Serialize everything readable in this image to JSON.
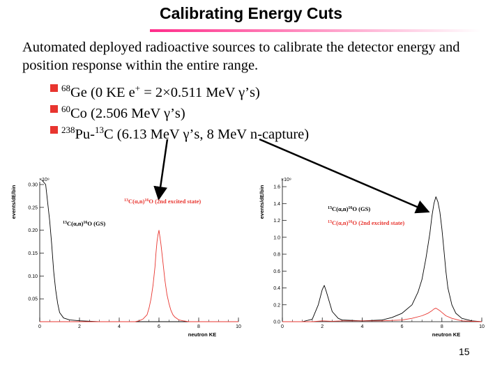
{
  "slide": {
    "title": "Calibrating Energy Cuts",
    "intro": "Automated deployed radioactive sources to calibrate the detector energy and position response within the entire range.",
    "bullets": [
      {
        "iso": "68",
        "pre": "Ge (0 KE e",
        "sup2": "+",
        "rest": " = 2×0.511 MeV γ’s)"
      },
      {
        "iso": "60",
        "pre": "Co (2.506 MeV γ’s)"
      },
      {
        "iso": "238",
        "pre": "Pu-",
        "iso2": "13",
        "rest": "C (6.13 MeV γ’s, 8 MeV n-capture)"
      }
    ],
    "page_number": "15"
  },
  "colors": {
    "series_gs": "#000000",
    "series_exc": "#e8352f",
    "title_rule": "#ff2d8a",
    "bullet": "#e8352f"
  },
  "chart_data": [
    {
      "type": "line",
      "xlabel": "neutron KE",
      "ylabel": "events/dE/bin",
      "multiplier": "×10⁹",
      "xlim": [
        0,
        10
      ],
      "ylim": [
        0,
        0.3
      ],
      "xticks": [
        0,
        2,
        4,
        6,
        8,
        10
      ],
      "yticks": [
        0.05,
        0.1,
        0.15,
        0.2,
        0.25,
        0.3
      ],
      "ytick_labels": [
        "0.05",
        "0.10",
        "0.15",
        "0.20",
        "0.25",
        "0.30"
      ],
      "annotations": [
        {
          "pre": "",
          "n1": "13",
          "mid1": "C(",
          "greek": "α",
          "mid2": ",n)",
          "n2": "16",
          "post": "O (2nd excited state)",
          "color": "#e8352f"
        },
        {
          "pre": "",
          "n1": "13",
          "mid1": "C(",
          "greek": "α",
          "mid2": ",n)",
          "n2": "16",
          "post": "O (GS)",
          "color": "#000000"
        }
      ],
      "series": [
        {
          "color": "#000000",
          "x": [
            0.1,
            0.3,
            0.5,
            0.6,
            0.7,
            0.8,
            0.9,
            1.0,
            1.2,
            1.5,
            2.0,
            2.5,
            3.0,
            10.0
          ],
          "y": [
            0.31,
            0.3,
            0.22,
            0.17,
            0.11,
            0.07,
            0.04,
            0.02,
            0.008,
            0.004,
            0.002,
            0.001,
            0.0,
            0.0
          ]
        },
        {
          "color": "#e8352f",
          "x": [
            0.0,
            4.8,
            5.0,
            5.2,
            5.4,
            5.5,
            5.6,
            5.7,
            5.8,
            5.85,
            5.9,
            5.95,
            6.0,
            6.05,
            6.1,
            6.2,
            6.3,
            6.4,
            6.5,
            6.6,
            6.7,
            6.8,
            7.0,
            7.2,
            7.5,
            10.0
          ],
          "y": [
            0.0,
            0.0,
            0.002,
            0.006,
            0.015,
            0.03,
            0.05,
            0.08,
            0.12,
            0.15,
            0.175,
            0.19,
            0.2,
            0.185,
            0.17,
            0.13,
            0.09,
            0.06,
            0.04,
            0.025,
            0.015,
            0.01,
            0.004,
            0.002,
            0.0,
            0.0
          ]
        }
      ]
    },
    {
      "type": "line",
      "xlabel": "neutron KE",
      "ylabel": "events/dE/bin",
      "multiplier": "×10⁹",
      "xlim": [
        0,
        10
      ],
      "ylim": [
        0,
        1.65
      ],
      "xticks": [
        0,
        2,
        4,
        6,
        8,
        10
      ],
      "yticks": [
        0.0,
        0.2,
        0.4,
        0.6,
        0.8,
        1.0,
        1.2,
        1.4,
        1.6
      ],
      "ytick_labels": [
        "0.0",
        "0.2",
        "0.4",
        "0.6",
        "0.8",
        "1.0",
        "1.2",
        "1.4",
        "1.6"
      ],
      "annotations": [
        {
          "pre": "",
          "n1": "13",
          "mid1": "C(",
          "greek": "α",
          "mid2": ",n)",
          "n2": "16",
          "post": "O (GS)",
          "color": "#000000"
        },
        {
          "pre": "",
          "n1": "13",
          "mid1": "C(",
          "greek": "α",
          "mid2": ",n)",
          "n2": "16",
          "post": "O (2nd excited state)",
          "color": "#e8352f"
        }
      ],
      "series": [
        {
          "color": "#000000",
          "x": [
            0.0,
            1.0,
            1.5,
            1.8,
            2.0,
            2.1,
            2.2,
            2.3,
            2.5,
            2.8,
            3.0,
            4.0,
            5.0,
            5.5,
            6.0,
            6.5,
            6.8,
            7.0,
            7.2,
            7.4,
            7.5,
            7.6,
            7.7,
            7.8,
            7.9,
            8.0,
            8.1,
            8.2,
            8.3,
            8.5,
            8.7,
            9.0,
            9.5,
            10.0
          ],
          "y": [
            0.0,
            0.0,
            0.03,
            0.2,
            0.38,
            0.43,
            0.36,
            0.28,
            0.12,
            0.04,
            0.02,
            0.01,
            0.02,
            0.05,
            0.1,
            0.2,
            0.35,
            0.5,
            0.75,
            1.05,
            1.25,
            1.4,
            1.48,
            1.42,
            1.3,
            1.1,
            0.85,
            0.6,
            0.4,
            0.2,
            0.1,
            0.04,
            0.01,
            0.0
          ]
        },
        {
          "color": "#e8352f",
          "x": [
            0.0,
            1.5,
            2.0,
            2.5,
            3.0,
            5.0,
            6.0,
            6.5,
            7.0,
            7.3,
            7.5,
            7.6,
            7.7,
            7.8,
            7.9,
            8.0,
            8.2,
            8.5,
            9.0,
            10.0
          ],
          "y": [
            0.0,
            0.0,
            0.01,
            0.005,
            0.01,
            0.01,
            0.02,
            0.04,
            0.07,
            0.1,
            0.13,
            0.15,
            0.16,
            0.145,
            0.13,
            0.11,
            0.07,
            0.04,
            0.01,
            0.0
          ]
        }
      ]
    }
  ]
}
